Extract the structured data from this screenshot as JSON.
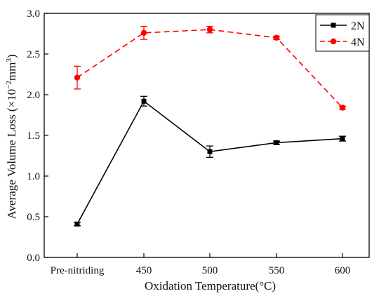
{
  "chart_data": {
    "type": "line",
    "xlabel": "Oxidation Temperature(°C)",
    "ylabel": {
      "prefix": "Average Volume Loss (×10",
      "exp1": "−2",
      "mid": "mm",
      "exp2": "3",
      "suffix": ")"
    },
    "categories": [
      "Pre-nitriding",
      "450",
      "500",
      "550",
      "600"
    ],
    "ylim": [
      0.0,
      3.0
    ],
    "yticks": [
      "0.0",
      "0.5",
      "1.0",
      "1.5",
      "2.0",
      "2.5",
      "3.0"
    ],
    "grid": false,
    "legend_position": "top-right",
    "series": [
      {
        "name": "2N",
        "color": "#000000",
        "line_style": "solid",
        "marker": "square",
        "values": [
          0.41,
          1.92,
          1.3,
          1.41,
          1.46
        ],
        "errors": [
          0.02,
          0.06,
          0.07,
          0.02,
          0.03
        ]
      },
      {
        "name": "4N",
        "color": "#ff0000",
        "line_style": "dashed",
        "marker": "circle",
        "values": [
          2.21,
          2.76,
          2.8,
          2.7,
          1.84
        ],
        "errors": [
          0.14,
          0.08,
          0.04,
          0.02,
          0.02
        ]
      }
    ]
  }
}
